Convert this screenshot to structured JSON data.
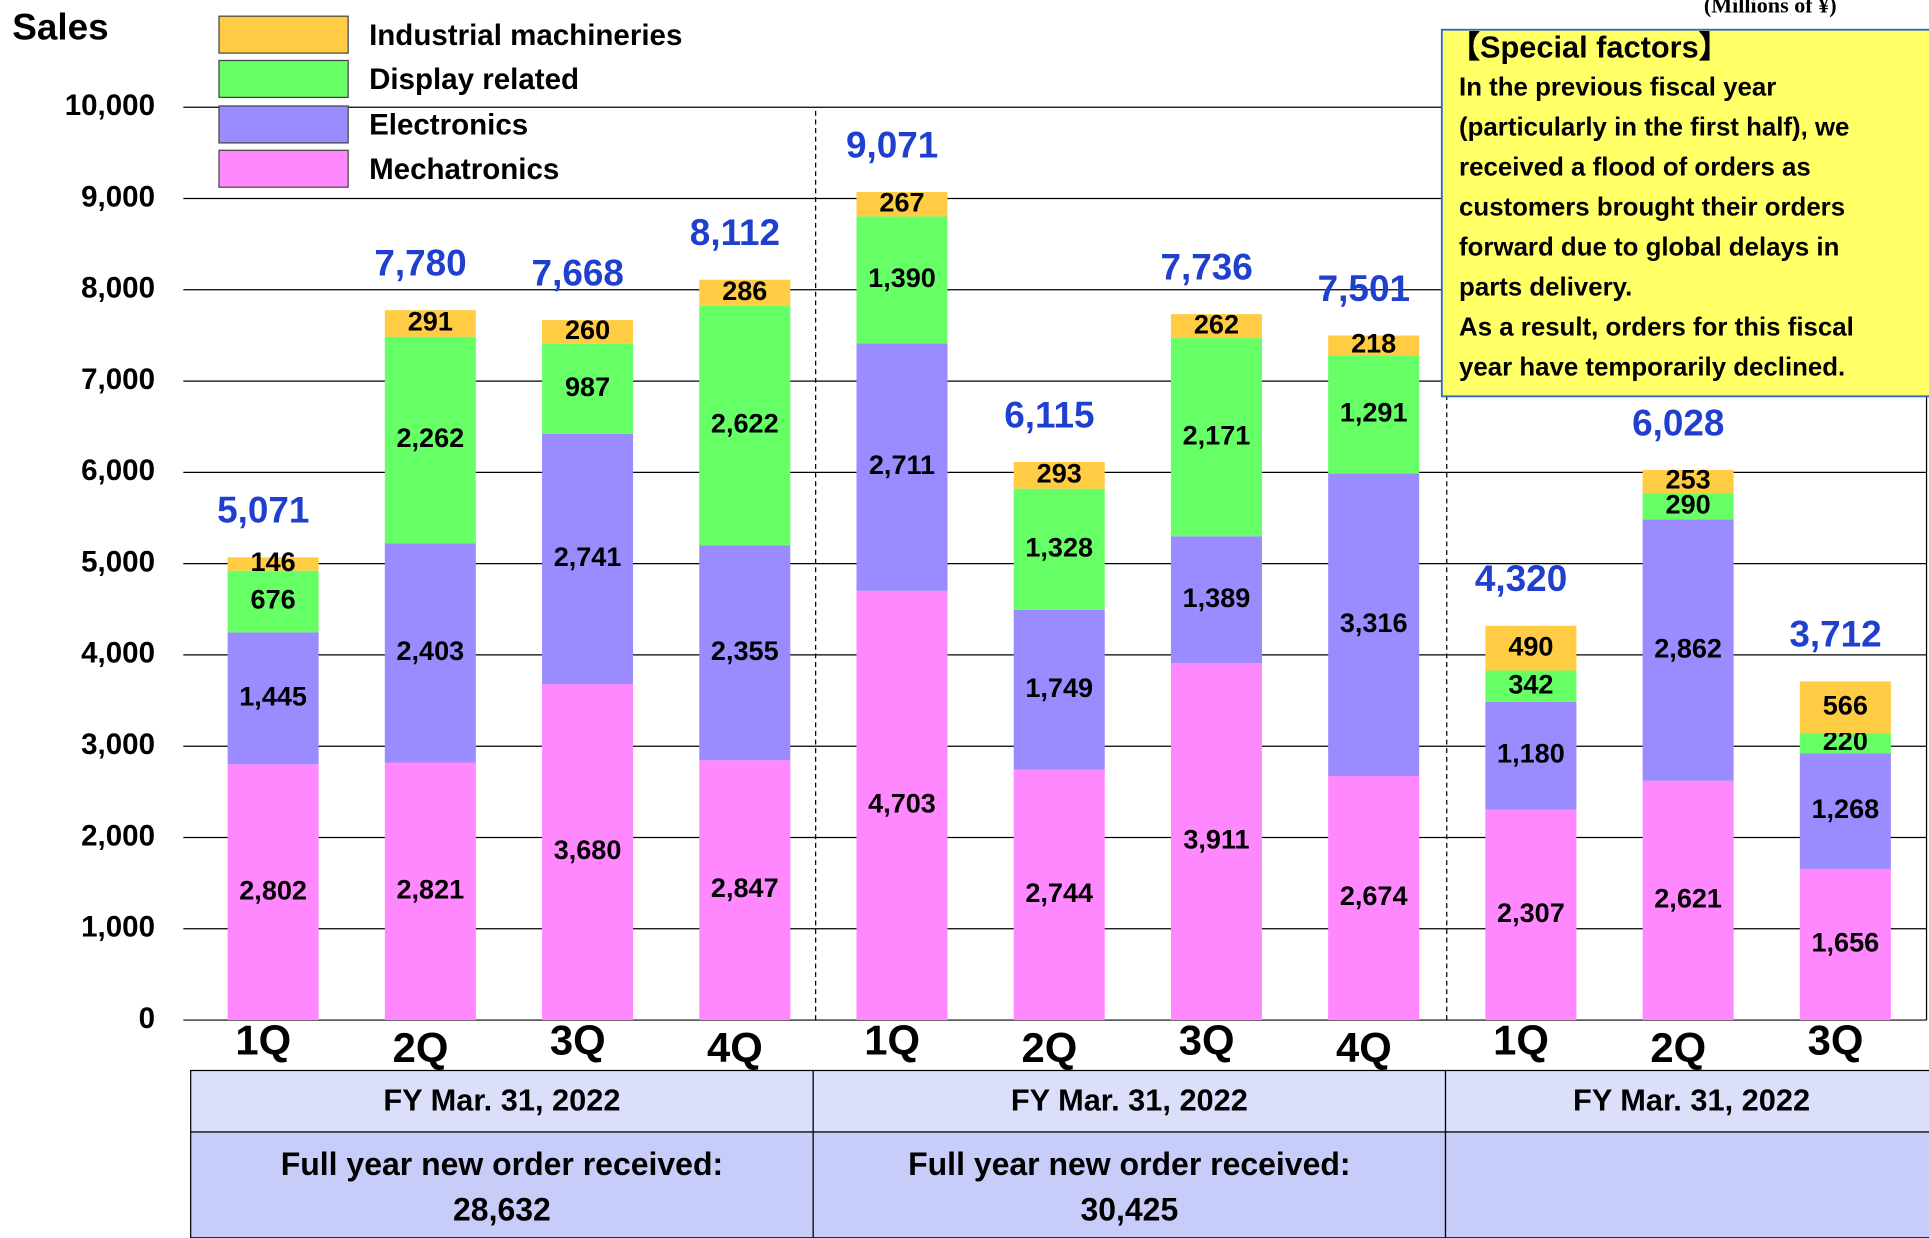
{
  "chart_data": {
    "type": "stacked_bar",
    "y_label": "Sales",
    "unit_note": "(Millions of ¥)",
    "categories": [
      "1Q",
      "2Q",
      "3Q",
      "4Q",
      "1Q",
      "2Q",
      "3Q",
      "4Q",
      "1Q",
      "2Q",
      "3Q"
    ],
    "series": [
      {
        "name": "Mechatronics",
        "color": "#ff88ff",
        "values": [
          2802,
          2821,
          3680,
          2847,
          4703,
          2744,
          3911,
          2674,
          2307,
          2621,
          1656
        ],
        "value_labels": [
          "2,802",
          "2,821",
          "3,680",
          "2,847",
          "4,703",
          "2,744",
          "3,911",
          "2,674",
          "2,307",
          "2,621",
          "1,656"
        ]
      },
      {
        "name": "Electronics",
        "color": "#9a8cff",
        "values": [
          1445,
          2403,
          2741,
          2355,
          2711,
          1749,
          1389,
          3316,
          1180,
          2862,
          1268
        ],
        "value_labels": [
          "1,445",
          "2,403",
          "2,741",
          "2,355",
          "2,711",
          "1,749",
          "1,389",
          "3,316",
          "1,180",
          "2,862",
          "1,268"
        ]
      },
      {
        "name": "Display related",
        "color": "#66ff66",
        "values": [
          676,
          2262,
          987,
          2622,
          1390,
          1328,
          2171,
          1291,
          342,
          290,
          220
        ],
        "value_labels": [
          "676",
          "2,262",
          "987",
          "2,622",
          "1,390",
          "1,328",
          "2,171",
          "1,291",
          "342",
          "290",
          "220"
        ]
      },
      {
        "name": "Industrial machineries",
        "color": "#ffcc44",
        "values": [
          146,
          291,
          260,
          286,
          267,
          293,
          262,
          218,
          490,
          253,
          566
        ]
      }
    ],
    "totals": [
      5071,
      7780,
      7668,
      8112,
      9071,
      6115,
      7736,
      7501,
      4320,
      6028,
      3712
    ],
    "total_labels": [
      "5,071",
      "7,780",
      "7,668",
      "8,112",
      "9,071",
      "6,115",
      "7,736",
      "7,501",
      "4,320",
      "6,028",
      "3,712"
    ],
    "ylim": [
      0,
      10000
    ],
    "yticks": [
      0,
      {
        "value": 1000,
        "label": "1,000"
      },
      {
        "value": 2000,
        "label": "2,000"
      },
      {
        "value": 3000,
        "label": "3,000"
      },
      {
        "value": 4000,
        "label": "4,000"
      },
      {
        "value": 5000,
        "label": "5,000"
      },
      {
        "value": 6000,
        "label": "6,000"
      },
      {
        "value": 7000,
        "label": "7,000"
      },
      {
        "value": 8000,
        "label": "8,000"
      },
      {
        "value": 9000,
        "label": "9,000"
      },
      {
        "value": 10000,
        "label": "10,000"
      }
    ],
    "grid": true,
    "groups": [
      {
        "name": "FY Mar. 31, 2022",
        "note": "Full year new order received:",
        "note_value": "28,632"
      },
      {
        "name": "FY Mar. 31, 2022",
        "note": "Full year new order received:",
        "note_value": "30,425"
      },
      {
        "name": "FY Mar. 31, 2022"
      }
    ],
    "annotation": {
      "title": "【Special factors】",
      "lines": [
        "In the previous fiscal year",
        "(particularly in the first half), we",
        "received a flood of orders as",
        "customers brought their orders",
        "forward due to global delays in",
        "parts delivery.",
        "As a result, orders for this fiscal",
        "year have temporarily declined."
      ]
    }
  }
}
